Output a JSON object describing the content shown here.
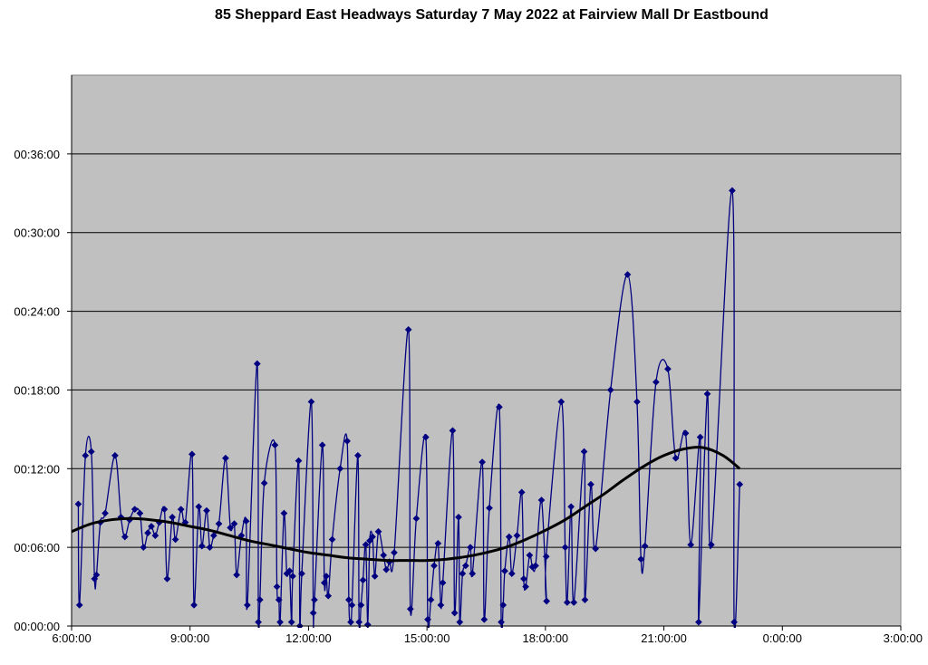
{
  "chart_data": {
    "type": "line",
    "title": "85 Sheppard East Headways Saturday 7 May 2022 at Fairview Mall Dr Eastbound",
    "xlabel": "",
    "ylabel": "",
    "x_unit": "hours since 6:00:00",
    "y_unit": "minutes",
    "xlim": [
      0,
      21
    ],
    "ylim": [
      0,
      42
    ],
    "x_ticks": [
      0,
      3,
      6,
      9,
      12,
      15,
      18,
      21
    ],
    "x_tick_labels": [
      "6:00:00",
      "9:00:00",
      "12:00:00",
      "15:00:00",
      "18:00:00",
      "21:00:00",
      "0:00:00",
      "3:00:00"
    ],
    "y_ticks": [
      0,
      6,
      12,
      18,
      24,
      30,
      36
    ],
    "y_tick_labels": [
      "00:00:00",
      "00:06:00",
      "00:12:00",
      "00:18:00",
      "00:24:00",
      "00:30:00",
      "00:36:00"
    ],
    "grid": "horizontal",
    "plot_background": "#c0c0c0",
    "series": [
      {
        "color": "#000080",
        "marker": "diamond",
        "smooth": true,
        "points": [
          [
            0.17,
            9.3
          ],
          [
            0.2,
            1.6
          ],
          [
            0.35,
            13.0
          ],
          [
            0.5,
            13.3
          ],
          [
            0.58,
            3.6
          ],
          [
            0.63,
            3.9
          ],
          [
            0.73,
            7.9
          ],
          [
            0.85,
            8.6
          ],
          [
            1.1,
            13.0
          ],
          [
            1.25,
            8.3
          ],
          [
            1.35,
            6.8
          ],
          [
            1.47,
            8.1
          ],
          [
            1.6,
            8.9
          ],
          [
            1.73,
            8.6
          ],
          [
            1.82,
            6.0
          ],
          [
            1.93,
            7.1
          ],
          [
            2.02,
            7.6
          ],
          [
            2.12,
            6.9
          ],
          [
            2.22,
            7.9
          ],
          [
            2.35,
            8.9
          ],
          [
            2.42,
            3.6
          ],
          [
            2.55,
            8.3
          ],
          [
            2.63,
            6.6
          ],
          [
            2.77,
            8.9
          ],
          [
            2.88,
            7.9
          ],
          [
            3.05,
            13.1
          ],
          [
            3.1,
            1.6
          ],
          [
            3.22,
            9.1
          ],
          [
            3.3,
            6.1
          ],
          [
            3.42,
            8.8
          ],
          [
            3.5,
            6.0
          ],
          [
            3.6,
            6.9
          ],
          [
            3.73,
            7.8
          ],
          [
            3.9,
            12.8
          ],
          [
            4.02,
            7.5
          ],
          [
            4.12,
            7.8
          ],
          [
            4.18,
            3.9
          ],
          [
            4.3,
            6.9
          ],
          [
            4.42,
            8.0
          ],
          [
            4.45,
            1.6
          ],
          [
            4.7,
            20.0
          ],
          [
            4.73,
            0.3
          ],
          [
            4.77,
            2.0
          ],
          [
            4.88,
            10.9
          ],
          [
            5.15,
            13.8
          ],
          [
            5.2,
            3.0
          ],
          [
            5.25,
            2.0
          ],
          [
            5.28,
            0.3
          ],
          [
            5.38,
            8.6
          ],
          [
            5.45,
            4.0
          ],
          [
            5.52,
            4.2
          ],
          [
            5.57,
            0.3
          ],
          [
            5.6,
            3.8
          ],
          [
            5.75,
            12.6
          ],
          [
            5.78,
            0.0
          ],
          [
            5.83,
            4.0
          ],
          [
            6.07,
            17.1
          ],
          [
            6.12,
            1.0
          ],
          [
            6.15,
            2.0
          ],
          [
            6.35,
            13.8
          ],
          [
            6.4,
            3.3
          ],
          [
            6.45,
            3.8
          ],
          [
            6.5,
            2.3
          ],
          [
            6.6,
            6.6
          ],
          [
            6.8,
            12.0
          ],
          [
            6.98,
            14.1
          ],
          [
            7.02,
            2.0
          ],
          [
            7.07,
            0.3
          ],
          [
            7.1,
            1.6
          ],
          [
            7.25,
            13.0
          ],
          [
            7.28,
            0.3
          ],
          [
            7.33,
            1.6
          ],
          [
            7.38,
            3.5
          ],
          [
            7.45,
            6.2
          ],
          [
            7.5,
            0.1
          ],
          [
            7.55,
            6.5
          ],
          [
            7.62,
            6.8
          ],
          [
            7.68,
            3.8
          ],
          [
            7.77,
            7.2
          ],
          [
            7.9,
            5.4
          ],
          [
            7.97,
            4.3
          ],
          [
            8.05,
            4.9
          ],
          [
            8.17,
            5.6
          ],
          [
            8.53,
            22.6
          ],
          [
            8.58,
            1.3
          ],
          [
            8.73,
            8.2
          ],
          [
            8.97,
            14.4
          ],
          [
            9.02,
            0.5
          ],
          [
            9.1,
            2.0
          ],
          [
            9.18,
            4.6
          ],
          [
            9.28,
            6.3
          ],
          [
            9.35,
            1.6
          ],
          [
            9.4,
            3.3
          ],
          [
            9.65,
            14.9
          ],
          [
            9.7,
            1.0
          ],
          [
            9.8,
            8.3
          ],
          [
            9.83,
            0.3
          ],
          [
            9.9,
            4.0
          ],
          [
            9.98,
            4.6
          ],
          [
            10.1,
            6.0
          ],
          [
            10.15,
            4.0
          ],
          [
            10.4,
            12.5
          ],
          [
            10.45,
            0.5
          ],
          [
            10.58,
            9.0
          ],
          [
            10.83,
            16.7
          ],
          [
            10.88,
            0.3
          ],
          [
            10.93,
            1.6
          ],
          [
            10.97,
            4.2
          ],
          [
            11.08,
            6.8
          ],
          [
            11.15,
            4.0
          ],
          [
            11.28,
            6.9
          ],
          [
            11.4,
            10.2
          ],
          [
            11.45,
            3.6
          ],
          [
            11.5,
            3.0
          ],
          [
            11.6,
            5.4
          ],
          [
            11.67,
            4.5
          ],
          [
            11.75,
            4.6
          ],
          [
            11.9,
            9.6
          ],
          [
            12.03,
            1.9
          ],
          [
            12.02,
            5.3
          ],
          [
            12.4,
            17.1
          ],
          [
            12.5,
            6.0
          ],
          [
            12.55,
            1.8
          ],
          [
            12.65,
            9.1
          ],
          [
            12.72,
            1.8
          ],
          [
            12.98,
            13.3
          ],
          [
            13.0,
            2.0
          ],
          [
            13.15,
            10.8
          ],
          [
            13.27,
            5.9
          ],
          [
            13.65,
            18.0
          ],
          [
            14.08,
            26.8
          ],
          [
            14.32,
            17.1
          ],
          [
            14.42,
            5.1
          ],
          [
            14.52,
            6.1
          ],
          [
            14.8,
            18.6
          ],
          [
            15.1,
            19.6
          ],
          [
            15.3,
            12.8
          ],
          [
            15.55,
            14.7
          ],
          [
            15.68,
            6.2
          ],
          [
            15.92,
            14.4
          ],
          [
            15.88,
            0.3
          ],
          [
            16.1,
            17.7
          ],
          [
            16.2,
            6.2
          ],
          [
            16.73,
            33.2
          ],
          [
            16.78,
            0.3
          ],
          [
            16.92,
            10.8
          ]
        ]
      },
      {
        "color": "#000000",
        "marker": "none",
        "smooth": true,
        "points": [
          [
            0,
            7.2
          ],
          [
            0.5,
            7.8
          ],
          [
            1,
            8.1
          ],
          [
            1.5,
            8.2
          ],
          [
            2,
            8.1
          ],
          [
            2.5,
            7.9
          ],
          [
            3,
            7.6
          ],
          [
            3.5,
            7.3
          ],
          [
            4,
            6.9
          ],
          [
            4.5,
            6.5
          ],
          [
            5,
            6.2
          ],
          [
            5.5,
            5.9
          ],
          [
            6,
            5.6
          ],
          [
            6.5,
            5.4
          ],
          [
            7,
            5.2
          ],
          [
            7.5,
            5.1
          ],
          [
            8,
            5.0
          ],
          [
            8.5,
            5.0
          ],
          [
            9,
            5.0
          ],
          [
            9.5,
            5.1
          ],
          [
            10,
            5.3
          ],
          [
            10.5,
            5.6
          ],
          [
            11,
            6.0
          ],
          [
            11.5,
            6.6
          ],
          [
            12,
            7.3
          ],
          [
            12.5,
            8.1
          ],
          [
            13,
            9.1
          ],
          [
            13.5,
            10.1
          ],
          [
            14,
            11.2
          ],
          [
            14.5,
            12.2
          ],
          [
            15,
            13.0
          ],
          [
            15.5,
            13.5
          ],
          [
            16,
            13.6
          ],
          [
            16.5,
            13.0
          ],
          [
            16.92,
            12.0
          ]
        ]
      }
    ]
  }
}
